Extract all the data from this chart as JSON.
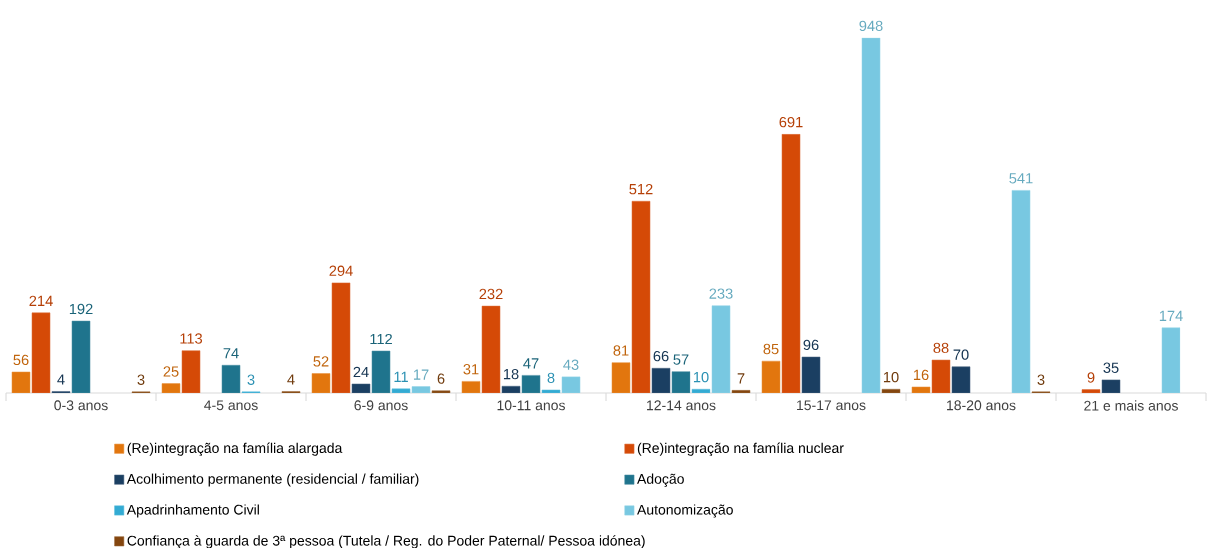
{
  "chart_data": {
    "type": "bar",
    "categories": [
      "0-3 anos",
      "4-5 anos",
      "6-9 anos",
      "10-11 anos",
      "12-14 anos",
      "15-17 anos",
      "18-20 anos",
      "21 e mais anos"
    ],
    "series": [
      {
        "name": "(Re)integração na família alargada",
        "color": "#e2760e",
        "values": [
          56,
          25,
          52,
          31,
          81,
          85,
          16,
          null
        ]
      },
      {
        "name": "(Re)integração na família nuclear",
        "color": "#d54a07",
        "values": [
          214,
          113,
          294,
          232,
          512,
          691,
          88,
          9
        ]
      },
      {
        "name": "Acolhimento permanente (residencial / familiar)",
        "color": "#1b3f62",
        "values": [
          4,
          null,
          24,
          18,
          66,
          96,
          70,
          35
        ]
      },
      {
        "name": "Adoção",
        "color": "#1f748d",
        "values": [
          192,
          74,
          112,
          47,
          57,
          null,
          null,
          null
        ]
      },
      {
        "name": "Apadrinhamento Civil",
        "color": "#33abd3",
        "values": [
          null,
          3,
          11,
          8,
          10,
          null,
          null,
          null
        ]
      },
      {
        "name": "Autonomização",
        "color": "#78c8e1",
        "values": [
          null,
          null,
          17,
          43,
          233,
          948,
          541,
          174
        ]
      },
      {
        "name": "Confiança à guarda de 3ª pessoa (Tutela / Reg. do Poder Paternal/ Pessoa idónea)",
        "color": "#84460f",
        "values": [
          3,
          4,
          6,
          null,
          7,
          10,
          3,
          null
        ]
      }
    ],
    "data_labels": true,
    "legend": "bottom"
  }
}
